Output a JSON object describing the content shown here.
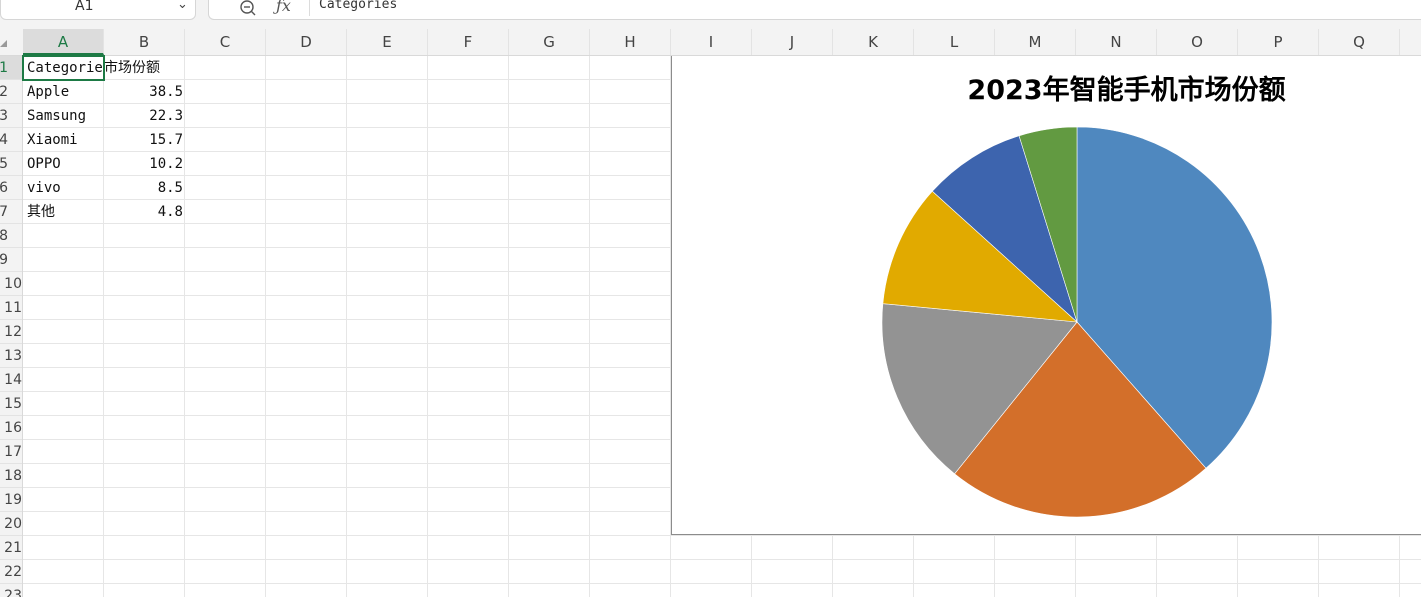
{
  "name_box": {
    "value": "A1"
  },
  "formula_bar": {
    "content": "Categories"
  },
  "columns": [
    "A",
    "B",
    "C",
    "D",
    "E",
    "F",
    "G",
    "H",
    "I",
    "J",
    "K",
    "L",
    "M",
    "N",
    "O",
    "P",
    "Q"
  ],
  "rows": [
    "1",
    "2",
    "3",
    "4",
    "5",
    "6",
    "7",
    "8",
    "9",
    "10",
    "11",
    "12",
    "13",
    "14",
    "15",
    "16",
    "17",
    "18",
    "19",
    "20",
    "21",
    "22",
    "23"
  ],
  "selected": {
    "column": "A",
    "row": "1"
  },
  "sheet": {
    "header": [
      "Categories",
      "市场份额"
    ],
    "data": [
      [
        "Apple",
        "38.5"
      ],
      [
        "Samsung",
        "22.3"
      ],
      [
        "Xiaomi",
        "15.7"
      ],
      [
        "OPPO",
        "10.2"
      ],
      [
        "vivo",
        "8.5"
      ],
      [
        "其他",
        "4.8"
      ]
    ]
  },
  "chart_data": {
    "type": "pie",
    "title": "2023年智能手机市场份额",
    "categories": [
      "Apple",
      "Samsung",
      "Xiaomi",
      "OPPO",
      "vivo",
      "其他"
    ],
    "values": [
      38.5,
      22.3,
      15.7,
      10.2,
      8.5,
      4.8
    ],
    "colors": [
      "#4f88bf",
      "#d36f2a",
      "#939393",
      "#e1aa00",
      "#3d64ae",
      "#629a41"
    ],
    "start_angle_deg": 0,
    "direction": "clockwise",
    "legend": "none"
  }
}
